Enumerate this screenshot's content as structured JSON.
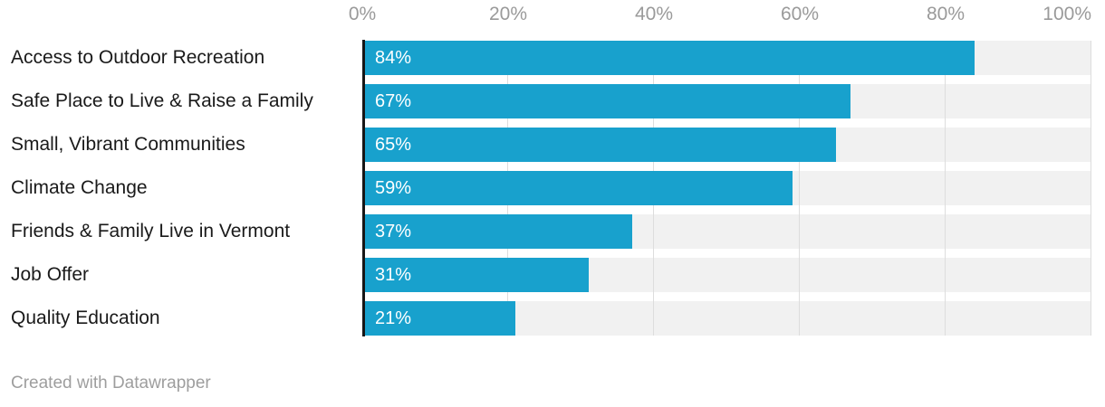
{
  "chart_data": {
    "type": "bar",
    "orientation": "horizontal",
    "title": "",
    "xlabel": "",
    "ylabel": "",
    "xlim": [
      0,
      100
    ],
    "grid": true,
    "categories": [
      "Access to Outdoor Recreation",
      "Safe Place to Live & Raise a Family",
      "Small, Vibrant Communities",
      "Climate Change",
      "Friends & Family Live in Vermont",
      "Job Offer",
      "Quality Education"
    ],
    "values": [
      84,
      67,
      65,
      59,
      37,
      31,
      21
    ],
    "value_labels": [
      "84%",
      "67%",
      "65%",
      "59%",
      "37%",
      "31%",
      "21%"
    ],
    "axis_ticks": [
      {
        "label": "0%",
        "value": 0
      },
      {
        "label": "20%",
        "value": 20
      },
      {
        "label": "40%",
        "value": 40
      },
      {
        "label": "60%",
        "value": 60
      },
      {
        "label": "80%",
        "value": 80
      },
      {
        "label": "100%",
        "value": 100
      }
    ],
    "colors": {
      "bar": "#18a1cd",
      "track": "#f1f1f1",
      "gridline": "#dddddd",
      "axis_line": "#161616",
      "tick_label": "#9a9a9a",
      "category_label": "#1a1a1a",
      "value_label": "#ffffff",
      "background": "#ffffff"
    }
  },
  "footer": {
    "credit": "Created with Datawrapper"
  }
}
